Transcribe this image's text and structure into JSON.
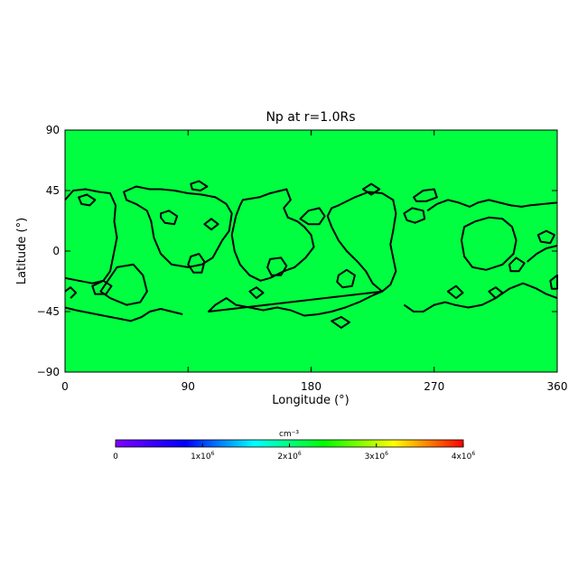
{
  "chart_data": {
    "type": "heatmap",
    "title": "Np at r=1.0Rs",
    "xlabel": "Longitude (°)",
    "ylabel": "Latitude (°)",
    "xlim": [
      0,
      360
    ],
    "ylim": [
      -90,
      90
    ],
    "xticks": [
      "0",
      "90",
      "180",
      "270",
      "360"
    ],
    "yticks": [
      "90",
      "45",
      "0",
      "−45",
      "−90"
    ],
    "xtick_values": [
      0,
      90,
      180,
      270,
      360
    ],
    "ytick_values": [
      90,
      45,
      0,
      -45,
      -90
    ],
    "fill_color": "#00ff40",
    "contour_color": "#000000",
    "colorbar": {
      "unit": "cm⁻³",
      "range": [
        0,
        4000000
      ],
      "tick_values": [
        0,
        1000000,
        2000000,
        3000000,
        4000000
      ],
      "ticks": [
        {
          "mantissa": "0",
          "exp": ""
        },
        {
          "mantissa": "1x10",
          "exp": "6"
        },
        {
          "mantissa": "2x10",
          "exp": "6"
        },
        {
          "mantissa": "3x10",
          "exp": "6"
        },
        {
          "mantissa": "4x10",
          "exp": "6"
        }
      ],
      "colors": [
        "#8000ff",
        "#0000ff",
        "#00ffff",
        "#00ff00",
        "#ffff00",
        "#ff0000"
      ]
    },
    "contours": [
      {
        "name": "contour-north-band",
        "points": [
          [
            0,
            38
          ],
          [
            6,
            45
          ],
          [
            15,
            46
          ],
          [
            25,
            44
          ],
          [
            33,
            43
          ],
          [
            37,
            34
          ],
          [
            36,
            22
          ],
          [
            38,
            10
          ],
          [
            35,
            -5
          ],
          [
            33,
            -15
          ],
          [
            28,
            -22
          ],
          [
            20,
            -24
          ],
          [
            10,
            -22
          ],
          [
            0,
            -20
          ]
        ]
      },
      {
        "name": "contour-west-lobe",
        "points": [
          [
            38,
            -12
          ],
          [
            50,
            -10
          ],
          [
            57,
            -18
          ],
          [
            60,
            -30
          ],
          [
            55,
            -38
          ],
          [
            45,
            -40
          ],
          [
            33,
            -35
          ],
          [
            26,
            -30
          ]
        ]
      },
      {
        "name": "contour-upper-left-band",
        "points": [
          [
            43,
            44
          ],
          [
            52,
            48
          ],
          [
            62,
            46
          ],
          [
            70,
            46
          ],
          [
            80,
            45
          ],
          [
            90,
            43
          ],
          [
            100,
            42
          ],
          [
            110,
            40
          ],
          [
            118,
            35
          ],
          [
            122,
            28
          ],
          [
            120,
            15
          ],
          [
            115,
            8
          ],
          [
            108,
            -5
          ],
          [
            100,
            -10
          ],
          [
            90,
            -12
          ],
          [
            78,
            -10
          ],
          [
            70,
            -2
          ],
          [
            65,
            10
          ],
          [
            63,
            22
          ],
          [
            60,
            30
          ],
          [
            52,
            35
          ],
          [
            45,
            38
          ]
        ]
      },
      {
        "name": "contour-meander-center",
        "points": [
          [
            105,
            -45
          ],
          [
            110,
            -40
          ],
          [
            118,
            -35
          ],
          [
            125,
            -40
          ],
          [
            135,
            -42
          ],
          [
            145,
            -44
          ],
          [
            155,
            -42
          ],
          [
            165,
            -44
          ],
          [
            175,
            -48
          ],
          [
            185,
            -47
          ],
          [
            195,
            -45
          ],
          [
            205,
            -42
          ],
          [
            215,
            -38
          ],
          [
            225,
            -33
          ],
          [
            232,
            -30
          ]
        ]
      },
      {
        "name": "contour-center-ring",
        "points": [
          [
            130,
            38
          ],
          [
            142,
            40
          ],
          [
            150,
            43
          ],
          [
            162,
            46
          ],
          [
            165,
            38
          ],
          [
            160,
            32
          ],
          [
            163,
            25
          ],
          [
            170,
            22
          ],
          [
            175,
            18
          ],
          [
            180,
            12
          ],
          [
            182,
            3
          ],
          [
            176,
            -5
          ],
          [
            168,
            -12
          ],
          [
            160,
            -15
          ],
          [
            150,
            -20
          ],
          [
            143,
            -22
          ],
          [
            135,
            -18
          ],
          [
            128,
            -10
          ],
          [
            124,
            0
          ],
          [
            122,
            12
          ],
          [
            125,
            26
          ],
          [
            128,
            34
          ]
        ]
      },
      {
        "name": "contour-east-ring",
        "points": [
          [
            200,
            34
          ],
          [
            212,
            40
          ],
          [
            222,
            44
          ],
          [
            232,
            43
          ],
          [
            240,
            38
          ],
          [
            242,
            28
          ],
          [
            240,
            15
          ],
          [
            238,
            5
          ],
          [
            240,
            -5
          ],
          [
            242,
            -15
          ],
          [
            238,
            -25
          ],
          [
            232,
            -30
          ],
          [
            225,
            -24
          ],
          [
            220,
            -15
          ],
          [
            214,
            -8
          ],
          [
            206,
            0
          ],
          [
            200,
            8
          ],
          [
            195,
            18
          ],
          [
            192,
            26
          ],
          [
            195,
            32
          ]
        ]
      },
      {
        "name": "contour-lower-left",
        "points": [
          [
            0,
            -42
          ],
          [
            8,
            -44
          ],
          [
            18,
            -46
          ],
          [
            28,
            -48
          ],
          [
            38,
            -50
          ],
          [
            48,
            -52
          ],
          [
            56,
            -49
          ],
          [
            62,
            -45
          ],
          [
            70,
            -43
          ],
          [
            78,
            -45
          ],
          [
            86,
            -47
          ]
        ]
      },
      {
        "name": "contour-right-band",
        "points": [
          [
            248,
            -40
          ],
          [
            255,
            -45
          ],
          [
            262,
            -45
          ],
          [
            270,
            -40
          ],
          [
            278,
            -38
          ],
          [
            285,
            -40
          ],
          [
            295,
            -42
          ],
          [
            305,
            -40
          ],
          [
            315,
            -35
          ],
          [
            325,
            -28
          ],
          [
            335,
            -24
          ],
          [
            345,
            -28
          ],
          [
            352,
            -32
          ],
          [
            360,
            -35
          ]
        ]
      },
      {
        "name": "contour-right-ring",
        "points": [
          [
            265,
            30
          ],
          [
            272,
            35
          ],
          [
            280,
            38
          ],
          [
            288,
            36
          ],
          [
            296,
            33
          ],
          [
            302,
            36
          ],
          [
            310,
            38
          ],
          [
            318,
            36
          ],
          [
            326,
            34
          ],
          [
            334,
            33
          ],
          [
            340,
            34
          ],
          [
            350,
            35
          ],
          [
            360,
            36
          ]
        ]
      },
      {
        "name": "contour-right-lobe",
        "points": [
          [
            292,
            18
          ],
          [
            300,
            22
          ],
          [
            310,
            25
          ],
          [
            320,
            24
          ],
          [
            327,
            18
          ],
          [
            330,
            8
          ],
          [
            328,
            -2
          ],
          [
            320,
            -10
          ],
          [
            308,
            -14
          ],
          [
            298,
            -12
          ],
          [
            292,
            -4
          ],
          [
            290,
            8
          ]
        ]
      },
      {
        "name": "contour-edge-lobe",
        "points": [
          [
            338,
            -8
          ],
          [
            345,
            -2
          ],
          [
            352,
            2
          ],
          [
            360,
            4
          ]
        ]
      },
      {
        "name": "contour-small-1",
        "points": [
          [
            70,
            28
          ],
          [
            76,
            30
          ],
          [
            82,
            26
          ],
          [
            80,
            20
          ],
          [
            73,
            21
          ],
          [
            70,
            25
          ]
        ]
      },
      {
        "name": "contour-small-2",
        "points": [
          [
            92,
            -4
          ],
          [
            98,
            -2
          ],
          [
            102,
            -8
          ],
          [
            100,
            -16
          ],
          [
            94,
            -16
          ],
          [
            90,
            -10
          ]
        ]
      },
      {
        "name": "contour-small-3",
        "points": [
          [
            150,
            -6
          ],
          [
            158,
            -5
          ],
          [
            162,
            -11
          ],
          [
            158,
            -18
          ],
          [
            151,
            -18
          ],
          [
            148,
            -12
          ]
        ]
      },
      {
        "name": "contour-small-4",
        "points": [
          [
            248,
            28
          ],
          [
            254,
            32
          ],
          [
            262,
            30
          ],
          [
            263,
            24
          ],
          [
            256,
            21
          ],
          [
            250,
            23
          ]
        ]
      },
      {
        "name": "contour-small-5",
        "points": [
          [
            200,
            -18
          ],
          [
            206,
            -14
          ],
          [
            212,
            -18
          ],
          [
            210,
            -26
          ],
          [
            203,
            -27
          ],
          [
            199,
            -23
          ]
        ]
      },
      {
        "name": "contour-small-6",
        "points": [
          [
            172,
            24
          ],
          [
            178,
            30
          ],
          [
            186,
            32
          ],
          [
            190,
            26
          ],
          [
            186,
            20
          ],
          [
            178,
            20
          ]
        ]
      },
      {
        "name": "contour-small-7",
        "points": [
          [
            10,
            40
          ],
          [
            16,
            42
          ],
          [
            22,
            38
          ],
          [
            18,
            34
          ],
          [
            12,
            35
          ]
        ]
      },
      {
        "name": "contour-small-8",
        "points": [
          [
            92,
            50
          ],
          [
            98,
            52
          ],
          [
            104,
            48
          ],
          [
            99,
            45
          ],
          [
            93,
            46
          ]
        ]
      },
      {
        "name": "contour-small-9",
        "points": [
          [
            255,
            40
          ],
          [
            262,
            45
          ],
          [
            270,
            46
          ],
          [
            272,
            40
          ],
          [
            264,
            37
          ],
          [
            257,
            37
          ]
        ]
      },
      {
        "name": "contour-small-10",
        "points": [
          [
            346,
            12
          ],
          [
            352,
            15
          ],
          [
            358,
            12
          ],
          [
            355,
            6
          ],
          [
            348,
            7
          ]
        ]
      },
      {
        "name": "contour-small-11",
        "points": [
          [
            20,
            -26
          ],
          [
            28,
            -22
          ],
          [
            34,
            -26
          ],
          [
            30,
            -32
          ],
          [
            22,
            -32
          ]
        ]
      },
      {
        "name": "contour-small-12",
        "points": [
          [
            325,
            -10
          ],
          [
            330,
            -5
          ],
          [
            336,
            -9
          ],
          [
            332,
            -15
          ],
          [
            326,
            -15
          ]
        ]
      },
      {
        "name": "contour-small-13",
        "points": [
          [
            355,
            -22
          ],
          [
            360,
            -18
          ],
          [
            360,
            -28
          ],
          [
            356,
            -28
          ]
        ]
      },
      {
        "name": "contour-small-14",
        "points": [
          [
            135,
            -30
          ],
          [
            140,
            -27
          ],
          [
            145,
            -31
          ],
          [
            140,
            -35
          ]
        ]
      },
      {
        "name": "contour-small-15",
        "points": [
          [
            195,
            -52
          ],
          [
            202,
            -49
          ],
          [
            208,
            -53
          ],
          [
            202,
            -57
          ]
        ]
      },
      {
        "name": "contour-small-16",
        "points": [
          [
            218,
            46
          ],
          [
            224,
            50
          ],
          [
            230,
            46
          ],
          [
            224,
            42
          ]
        ]
      },
      {
        "name": "contour-small-17",
        "points": [
          [
            280,
            -30
          ],
          [
            286,
            -26
          ],
          [
            291,
            -31
          ],
          [
            286,
            -35
          ]
        ]
      },
      {
        "name": "contour-small-18",
        "points": [
          [
            102,
            20
          ],
          [
            107,
            24
          ],
          [
            112,
            20
          ],
          [
            107,
            16
          ]
        ]
      },
      {
        "name": "contour-small-19",
        "points": [
          [
            310,
            -30
          ],
          [
            315,
            -27
          ],
          [
            320,
            -31
          ],
          [
            315,
            -35
          ]
        ]
      },
      {
        "name": "contour-small-20",
        "points": [
          [
            0,
            -30
          ],
          [
            4,
            -27
          ],
          [
            8,
            -31
          ],
          [
            4,
            -35
          ]
        ]
      }
    ]
  }
}
